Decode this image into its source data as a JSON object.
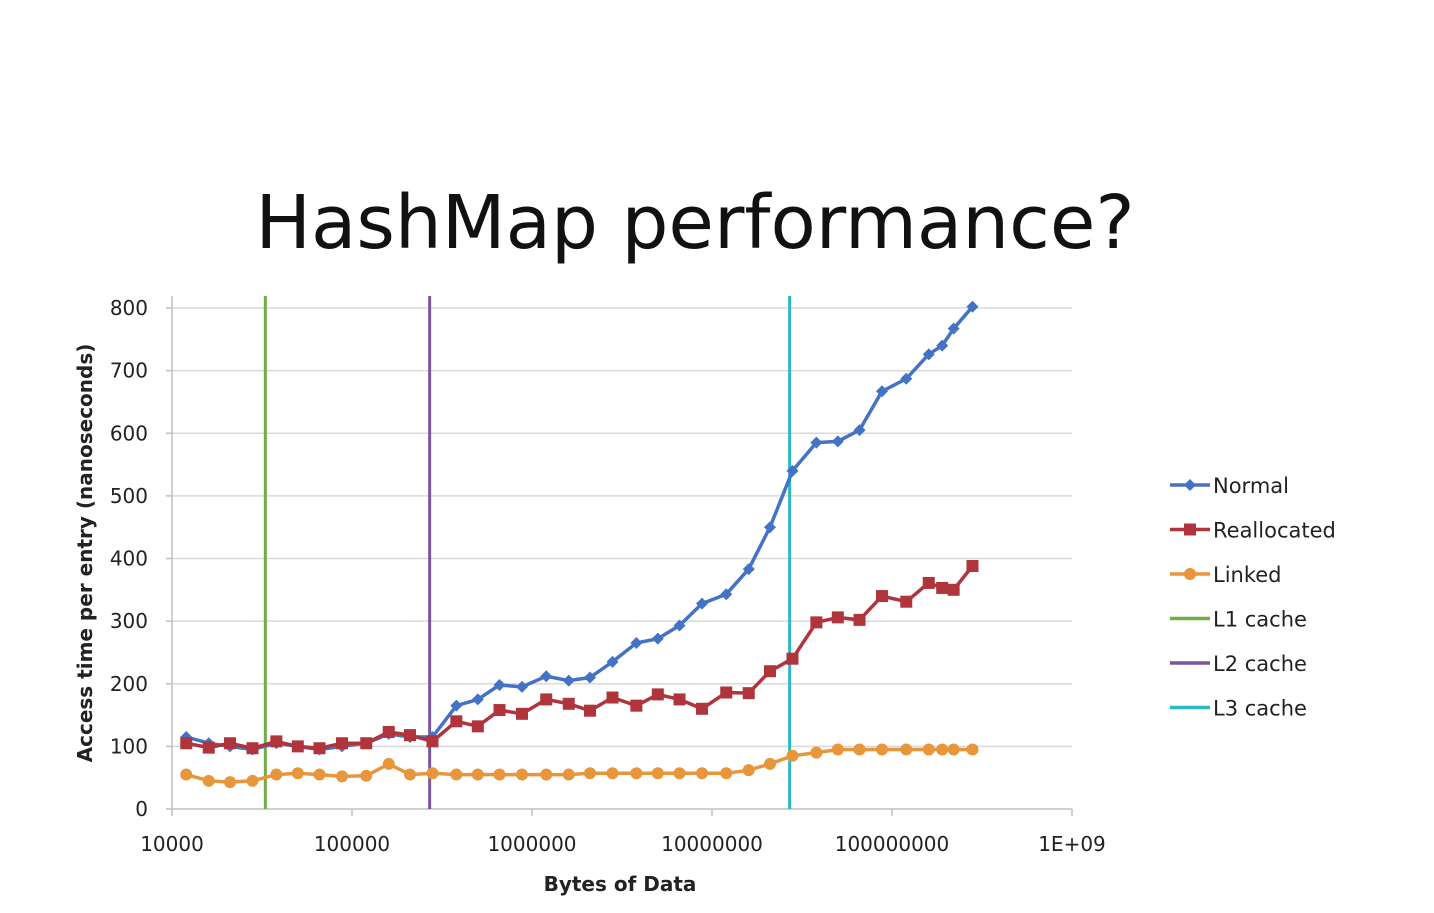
{
  "slide": {
    "title": "HashMap performance?"
  },
  "chart_data": {
    "type": "line",
    "title": "HashMap performance?",
    "xlabel": "Bytes of Data",
    "ylabel": "Access time per entry (nanoseconds)",
    "x_scale": "log",
    "xlim": [
      10000,
      1000000000
    ],
    "ylim": [
      0,
      800
    ],
    "x_tick_labels": [
      "10000",
      "100000",
      "1000000",
      "10000000",
      "100000000",
      "1E+09"
    ],
    "x_tick_values": [
      10000,
      100000,
      1000000,
      10000000,
      100000000,
      1000000000
    ],
    "y_tick_labels": [
      "0",
      "100",
      "200",
      "300",
      "400",
      "500",
      "600",
      "700",
      "800"
    ],
    "y_tick_values": [
      0,
      100,
      200,
      300,
      400,
      500,
      600,
      700,
      800
    ],
    "grid": "horizontal",
    "legend_position": "right",
    "series": [
      {
        "name": "Normal",
        "color": "#4472c4",
        "marker": "diamond",
        "x": [
          12000,
          16000,
          21000,
          28000,
          38000,
          50000,
          66000,
          88000,
          120000,
          160000,
          210000,
          280000,
          380000,
          500000,
          660000,
          880000,
          1200000,
          1600000,
          2100000,
          2800000,
          3800000,
          5000000,
          6600000,
          8800000,
          12000000,
          16000000,
          21000000,
          28000000,
          38000000,
          50000000,
          66000000,
          88000000,
          120000000,
          160000000,
          190000000,
          220000000,
          280000000
        ],
        "y": [
          115,
          105,
          100,
          95,
          105,
          100,
          95,
          100,
          105,
          120,
          115,
          115,
          165,
          175,
          198,
          195,
          212,
          205,
          210,
          235,
          265,
          272,
          293,
          328,
          343,
          383,
          450,
          540,
          585,
          587,
          605,
          667,
          687,
          726,
          740,
          767,
          802
        ]
      },
      {
        "name": "Reallocated",
        "color": "#b0343c",
        "marker": "square",
        "x": [
          12000,
          16000,
          21000,
          28000,
          38000,
          50000,
          66000,
          88000,
          120000,
          160000,
          210000,
          280000,
          380000,
          500000,
          660000,
          880000,
          1200000,
          1600000,
          2100000,
          2800000,
          3800000,
          5000000,
          6600000,
          8800000,
          12000000,
          16000000,
          21000000,
          28000000,
          38000000,
          50000000,
          66000000,
          88000000,
          120000000,
          160000000,
          190000000,
          220000000,
          280000000
        ],
        "y": [
          105,
          98,
          105,
          97,
          108,
          100,
          97,
          105,
          105,
          123,
          118,
          108,
          140,
          132,
          158,
          152,
          175,
          168,
          157,
          178,
          165,
          183,
          175,
          160,
          186,
          185,
          220,
          240,
          298,
          306,
          302,
          340,
          331,
          361,
          353,
          350,
          388
        ]
      },
      {
        "name": "Linked",
        "color": "#e8963c",
        "marker": "circle",
        "x": [
          12000,
          16000,
          21000,
          28000,
          38000,
          50000,
          66000,
          88000,
          120000,
          160000,
          210000,
          280000,
          380000,
          500000,
          660000,
          880000,
          1200000,
          1600000,
          2100000,
          2800000,
          3800000,
          5000000,
          6600000,
          8800000,
          12000000,
          16000000,
          21000000,
          28000000,
          38000000,
          50000000,
          66000000,
          88000000,
          120000000,
          160000000,
          190000000,
          220000000,
          280000000
        ],
        "y": [
          55,
          45,
          43,
          45,
          55,
          57,
          55,
          52,
          53,
          72,
          55,
          57,
          55,
          55,
          55,
          55,
          55,
          55,
          57,
          57,
          57,
          57,
          57,
          57,
          57,
          62,
          72,
          85,
          90,
          95,
          95,
          95,
          95,
          95,
          95,
          95,
          95
        ]
      }
    ],
    "vertical_markers": [
      {
        "name": "L1 cache",
        "color": "#70ad47",
        "x": 33000
      },
      {
        "name": "L2 cache",
        "color": "#7a55a0",
        "x": 270000
      },
      {
        "name": "L3 cache",
        "color": "#2db7c4",
        "x": 27000000
      }
    ]
  }
}
